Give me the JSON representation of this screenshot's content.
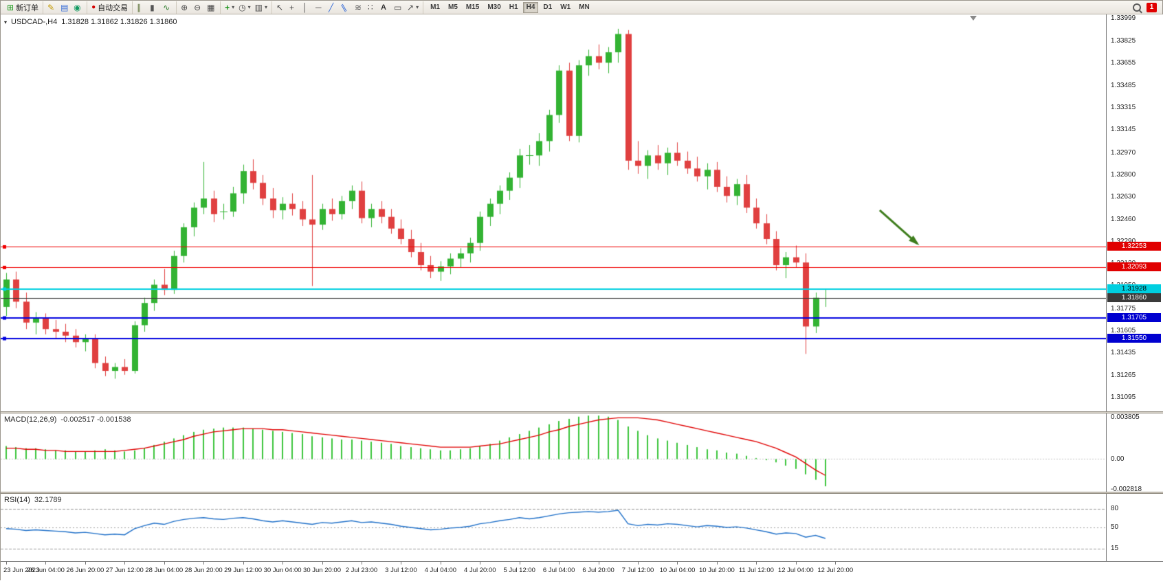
{
  "toolbar": {
    "groups": [
      {
        "items": [
          {
            "icon": "new-order",
            "label": "新订单"
          }
        ]
      },
      {
        "items": [
          {
            "icon": "pencil"
          },
          {
            "icon": "navigator"
          },
          {
            "icon": "refresh"
          }
        ]
      },
      {
        "items": [
          {
            "icon": "auto-trading",
            "label": "自动交易"
          }
        ]
      },
      {
        "items": [
          {
            "icon": "bar-chart"
          },
          {
            "icon": "candle-chart"
          },
          {
            "icon": "line-chart"
          }
        ]
      },
      {
        "items": [
          {
            "icon": "zoom-in"
          },
          {
            "icon": "zoom-out"
          },
          {
            "icon": "tile-windows"
          }
        ]
      },
      {
        "items": [
          {
            "icon": "indicators",
            "dropdown": true
          },
          {
            "icon": "periods",
            "dropdown": true
          },
          {
            "icon": "templates",
            "dropdown": true
          }
        ]
      },
      {
        "items": [
          {
            "icon": "cursor"
          },
          {
            "icon": "crosshair"
          },
          {
            "icon": "vertical-line"
          },
          {
            "icon": "horizontal-line"
          },
          {
            "icon": "trendline"
          },
          {
            "icon": "equidistant-channel"
          },
          {
            "icon": "fibonacci"
          },
          {
            "icon": "dots"
          },
          {
            "icon": "text"
          },
          {
            "icon": "text-label"
          },
          {
            "icon": "arrows",
            "dropdown": true
          }
        ]
      }
    ],
    "timeframes": [
      "M1",
      "M5",
      "M15",
      "M30",
      "H1",
      "H4",
      "D1",
      "W1",
      "MN"
    ],
    "active_timeframe": "H4",
    "notification_count": "1"
  },
  "chart_header": {
    "symbol_period": "USDCAD-,H4",
    "ohlc": "1.31828 1.31862 1.31826 1.31860"
  },
  "macd_panel": {
    "title": "MACD(12,26,9)",
    "values": "-0.002517 -0.001538"
  },
  "rsi_panel": {
    "title": "RSI(14)",
    "value": "32.1789"
  },
  "colors": {
    "bull": "#33b333",
    "bear": "#e04040",
    "macd_hist": "#3cc43c",
    "macd_signal": "#e00000",
    "rsi_line": "#1e6fc8"
  },
  "chart_data": {
    "type": "candlestick",
    "symbol": "USDCAD",
    "timeframe": "H4",
    "price_range": {
      "min": 1.3099,
      "max": 1.3403
    },
    "bar_spacing": 14.36,
    "candles": [
      [
        1.3179,
        1.3205,
        1.3172,
        1.32
      ],
      [
        1.32,
        1.3206,
        1.3178,
        1.3183
      ],
      [
        1.3183,
        1.319,
        1.3162,
        1.3167
      ],
      [
        1.3167,
        1.3175,
        1.3158,
        1.317
      ],
      [
        1.317,
        1.3174,
        1.3158,
        1.3162
      ],
      [
        1.3162,
        1.3169,
        1.3155,
        1.316
      ],
      [
        1.316,
        1.3166,
        1.3152,
        1.3157
      ],
      [
        1.3157,
        1.3162,
        1.3148,
        1.3152
      ],
      [
        1.3152,
        1.3158,
        1.3145,
        1.3155
      ],
      [
        1.3155,
        1.3158,
        1.3132,
        1.3136
      ],
      [
        1.3136,
        1.3141,
        1.3126,
        1.313
      ],
      [
        1.313,
        1.3136,
        1.3124,
        1.3133
      ],
      [
        1.3133,
        1.3139,
        1.3127,
        1.313
      ],
      [
        1.313,
        1.3168,
        1.3128,
        1.3165
      ],
      [
        1.3165,
        1.3186,
        1.316,
        1.3182
      ],
      [
        1.3182,
        1.32,
        1.3176,
        1.3196
      ],
      [
        1.3196,
        1.3208,
        1.3188,
        1.3192
      ],
      [
        1.3192,
        1.3222,
        1.3189,
        1.3218
      ],
      [
        1.3218,
        1.3243,
        1.3213,
        1.324
      ],
      [
        1.324,
        1.3259,
        1.3233,
        1.3255
      ],
      [
        1.3255,
        1.329,
        1.325,
        1.3262
      ],
      [
        1.3262,
        1.3268,
        1.3244,
        1.325
      ],
      [
        1.3252,
        1.3258,
        1.3246,
        1.3252
      ],
      [
        1.3252,
        1.3271,
        1.3248,
        1.3266
      ],
      [
        1.3266,
        1.3288,
        1.3258,
        1.3283
      ],
      [
        1.3283,
        1.3292,
        1.3269,
        1.3274
      ],
      [
        1.3274,
        1.328,
        1.3257,
        1.3262
      ],
      [
        1.3262,
        1.327,
        1.3247,
        1.3253
      ],
      [
        1.3253,
        1.3263,
        1.3246,
        1.3258
      ],
      [
        1.3258,
        1.3266,
        1.3249,
        1.3254
      ],
      [
        1.3254,
        1.326,
        1.3241,
        1.3246
      ],
      [
        1.3246,
        1.328,
        1.3195,
        1.3242
      ],
      [
        1.3242,
        1.3258,
        1.3238,
        1.3254
      ],
      [
        1.3254,
        1.3262,
        1.3245,
        1.325
      ],
      [
        1.325,
        1.3264,
        1.3246,
        1.326
      ],
      [
        1.326,
        1.3272,
        1.3254,
        1.3268
      ],
      [
        1.3268,
        1.3275,
        1.3243,
        1.3247
      ],
      [
        1.3247,
        1.3258,
        1.324,
        1.3254
      ],
      [
        1.3254,
        1.326,
        1.3243,
        1.3248
      ],
      [
        1.3248,
        1.3254,
        1.3235,
        1.3239
      ],
      [
        1.3239,
        1.3246,
        1.3227,
        1.3231
      ],
      [
        1.3231,
        1.3238,
        1.3217,
        1.3221
      ],
      [
        1.3221,
        1.3228,
        1.3207,
        1.3211
      ],
      [
        1.3211,
        1.3218,
        1.3201,
        1.3206
      ],
      [
        1.3206,
        1.3214,
        1.3199,
        1.321
      ],
      [
        1.321,
        1.322,
        1.3204,
        1.3216
      ],
      [
        1.3216,
        1.3224,
        1.3209,
        1.322
      ],
      [
        1.322,
        1.3232,
        1.3213,
        1.3228
      ],
      [
        1.3228,
        1.3252,
        1.3222,
        1.3248
      ],
      [
        1.3248,
        1.3262,
        1.3241,
        1.3258
      ],
      [
        1.3258,
        1.3272,
        1.325,
        1.3268
      ],
      [
        1.3268,
        1.3282,
        1.3261,
        1.3278
      ],
      [
        1.3278,
        1.33,
        1.327,
        1.3295
      ],
      [
        1.3295,
        1.3303,
        1.3288,
        1.3295
      ],
      [
        1.3295,
        1.3312,
        1.3287,
        1.3306
      ],
      [
        1.3306,
        1.333,
        1.3298,
        1.3326
      ],
      [
        1.3326,
        1.3364,
        1.332,
        1.336
      ],
      [
        1.336,
        1.3366,
        1.3306,
        1.331
      ],
      [
        1.331,
        1.3368,
        1.3305,
        1.3364
      ],
      [
        1.3364,
        1.3376,
        1.3356,
        1.3371
      ],
      [
        1.3371,
        1.338,
        1.3361,
        1.3366
      ],
      [
        1.3366,
        1.3378,
        1.3358,
        1.3374
      ],
      [
        1.3374,
        1.3392,
        1.3366,
        1.3388
      ],
      [
        1.3388,
        1.3391,
        1.3284,
        1.3291
      ],
      [
        1.3291,
        1.3306,
        1.3281,
        1.3287
      ],
      [
        1.3287,
        1.3299,
        1.3277,
        1.3295
      ],
      [
        1.3295,
        1.3303,
        1.3284,
        1.3289
      ],
      [
        1.3289,
        1.3301,
        1.328,
        1.3297
      ],
      [
        1.3297,
        1.3305,
        1.3287,
        1.3291
      ],
      [
        1.3291,
        1.3298,
        1.3281,
        1.3285
      ],
      [
        1.3285,
        1.3294,
        1.3275,
        1.3279
      ],
      [
        1.3279,
        1.3289,
        1.3269,
        1.3284
      ],
      [
        1.3284,
        1.329,
        1.3267,
        1.3271
      ],
      [
        1.3271,
        1.3279,
        1.3259,
        1.3264
      ],
      [
        1.3264,
        1.3277,
        1.3257,
        1.3273
      ],
      [
        1.3273,
        1.328,
        1.3251,
        1.3255
      ],
      [
        1.3255,
        1.3262,
        1.3239,
        1.3243
      ],
      [
        1.3243,
        1.325,
        1.3227,
        1.3231
      ],
      [
        1.3231,
        1.3237,
        1.3207,
        1.3211
      ],
      [
        1.3211,
        1.3221,
        1.3201,
        1.3217
      ],
      [
        1.3217,
        1.3226,
        1.3209,
        1.3213
      ],
      [
        1.3213,
        1.322,
        1.3143,
        1.3164
      ],
      [
        1.3164,
        1.319,
        1.3159,
        1.3186
      ],
      [
        1.3186,
        1.3193,
        1.3179,
        1.3186
      ]
    ],
    "horizontal_lines": [
      {
        "price": 1.32253,
        "color": "#f00000",
        "width": 1,
        "label": "1.32253",
        "label_bg": "#e00000",
        "label_fg": "#ffffff"
      },
      {
        "price": 1.32093,
        "color": "#f00000",
        "width": 1,
        "label": "1.32093",
        "label_bg": "#e00000",
        "label_fg": "#ffffff"
      },
      {
        "price": 1.31928,
        "color": "#00cfe0",
        "width": 2,
        "label": "1.31928",
        "label_bg": "#00cfe0",
        "label_fg": "#000000"
      },
      {
        "price": 1.3186,
        "color": "#3a3a3a",
        "width": 1,
        "label": "1.31860",
        "label_bg": "#3a3a3a",
        "label_fg": "#ffffff",
        "bid_line": true
      },
      {
        "price": 1.31705,
        "color": "#0000e0",
        "width": 2,
        "label": "1.31705",
        "label_bg": "#0000d0",
        "label_fg": "#ffffff"
      },
      {
        "price": 1.3155,
        "color": "#0000e0",
        "width": 2,
        "label": "1.31550",
        "label_bg": "#0000d0",
        "label_fg": "#ffffff"
      }
    ],
    "price_ticks": [
      "1.33999",
      "1.33825",
      "1.33655",
      "1.33485",
      "1.33315",
      "1.33145",
      "1.32970",
      "1.32800",
      "1.32630",
      "1.32460",
      "1.32290",
      "1.32120",
      "1.31950",
      "1.31775",
      "1.31605",
      "1.31435",
      "1.31265",
      "1.31095"
    ],
    "time_labels": [
      "23 Jun 2023",
      "26 Jun 04:00",
      "26 Jun 20:00",
      "27 Jun 12:00",
      "28 Jun 04:00",
      "28 Jun 20:00",
      "29 Jun 12:00",
      "30 Jun 04:00",
      "30 Jun 20:00",
      "2 Jul 23:00",
      "3 Jul 12:00",
      "4 Jul 04:00",
      "4 Jul 20:00",
      "5 Jul 12:00",
      "6 Jul 04:00",
      "6 Jul 20:00",
      "7 Jul 12:00",
      "10 Jul 04:00",
      "10 Jul 20:00",
      "11 Jul 12:00",
      "12 Jul 04:00",
      "12 Jul 20:00"
    ],
    "bars_per_label": 4,
    "macd": {
      "range": {
        "min": -0.003,
        "max": 0.0042
      },
      "histogram": [
        0.0012,
        0.0011,
        0.001,
        0.001,
        0.0009,
        0.0008,
        0.0008,
        0.0007,
        0.0007,
        0.0008,
        0.0009,
        0.0008,
        0.0007,
        0.0008,
        0.001,
        0.0013,
        0.0016,
        0.0019,
        0.0022,
        0.0025,
        0.0027,
        0.0028,
        0.0029,
        0.0029,
        0.0029,
        0.0028,
        0.0027,
        0.0026,
        0.0025,
        0.0024,
        0.0023,
        0.0021,
        0.002,
        0.0019,
        0.0018,
        0.0018,
        0.0017,
        0.0016,
        0.0015,
        0.0014,
        0.0012,
        0.0011,
        0.001,
        0.0009,
        0.0008,
        0.0008,
        0.0009,
        0.001,
        0.0012,
        0.0014,
        0.0017,
        0.002,
        0.0023,
        0.0026,
        0.0029,
        0.0032,
        0.0035,
        0.0037,
        0.0039,
        0.004,
        0.004,
        0.0039,
        0.0036,
        0.003,
        0.0026,
        0.0022,
        0.0019,
        0.0017,
        0.0015,
        0.0013,
        0.0011,
        0.0009,
        0.0008,
        0.0006,
        0.0005,
        0.0003,
        0.0001,
        -0.0001,
        -0.0003,
        -0.0006,
        -0.0009,
        -0.0014,
        -0.0019,
        -0.0025
      ],
      "signal": [
        0.001,
        0.001,
        0.0009,
        0.0009,
        0.0008,
        0.0008,
        0.0007,
        0.0007,
        0.0007,
        0.0007,
        0.0007,
        0.0007,
        0.0008,
        0.0009,
        0.001,
        0.0012,
        0.0014,
        0.0016,
        0.0018,
        0.0021,
        0.0023,
        0.0025,
        0.0026,
        0.0027,
        0.0028,
        0.0028,
        0.0028,
        0.0027,
        0.0027,
        0.0026,
        0.0025,
        0.0024,
        0.0023,
        0.0022,
        0.0021,
        0.002,
        0.0019,
        0.0018,
        0.0017,
        0.0016,
        0.0015,
        0.0014,
        0.0013,
        0.0012,
        0.0011,
        0.0011,
        0.0011,
        0.0011,
        0.0012,
        0.0013,
        0.0014,
        0.0016,
        0.0018,
        0.002,
        0.0022,
        0.0025,
        0.0027,
        0.003,
        0.0032,
        0.0034,
        0.0036,
        0.0037,
        0.0038,
        0.0038,
        0.0038,
        0.0037,
        0.0036,
        0.0034,
        0.0032,
        0.003,
        0.0028,
        0.0026,
        0.0024,
        0.0022,
        0.002,
        0.0018,
        0.0016,
        0.0013,
        0.001,
        0.0006,
        0.0002,
        -0.0004,
        -0.001,
        -0.0015
      ],
      "scale_labels": [
        {
          "text": "0.003805",
          "value": 0.003805
        },
        {
          "text": "0.00",
          "value": 0
        },
        {
          "text": "-0.002818",
          "value": -0.002818
        }
      ]
    },
    "rsi": {
      "range": {
        "min": -5,
        "max": 105
      },
      "values": [
        48,
        47,
        45,
        46,
        45,
        44,
        43,
        41,
        42,
        40,
        38,
        39,
        38,
        48,
        53,
        57,
        55,
        60,
        63,
        65,
        66,
        64,
        63,
        65,
        66,
        64,
        61,
        59,
        61,
        59,
        57,
        55,
        58,
        57,
        59,
        61,
        58,
        59,
        57,
        55,
        52,
        50,
        48,
        46,
        47,
        49,
        50,
        52,
        56,
        58,
        61,
        63,
        66,
        64,
        66,
        69,
        72,
        74,
        75,
        76,
        75,
        76,
        78,
        56,
        53,
        55,
        54,
        56,
        55,
        53,
        51,
        53,
        52,
        50,
        51,
        49,
        46,
        43,
        39,
        41,
        40,
        34,
        37,
        32
      ],
      "levels": [
        {
          "text": "80",
          "value": 80
        },
        {
          "text": "50",
          "value": 50
        },
        {
          "text": "15",
          "value": 15
        }
      ]
    },
    "annotations": [
      {
        "type": "arrow",
        "color": "#3e7d1c",
        "from": {
          "bar": 88.5,
          "price": 1.3253
        },
        "to": {
          "bar": 92.3,
          "price": 1.32275
        }
      }
    ]
  }
}
